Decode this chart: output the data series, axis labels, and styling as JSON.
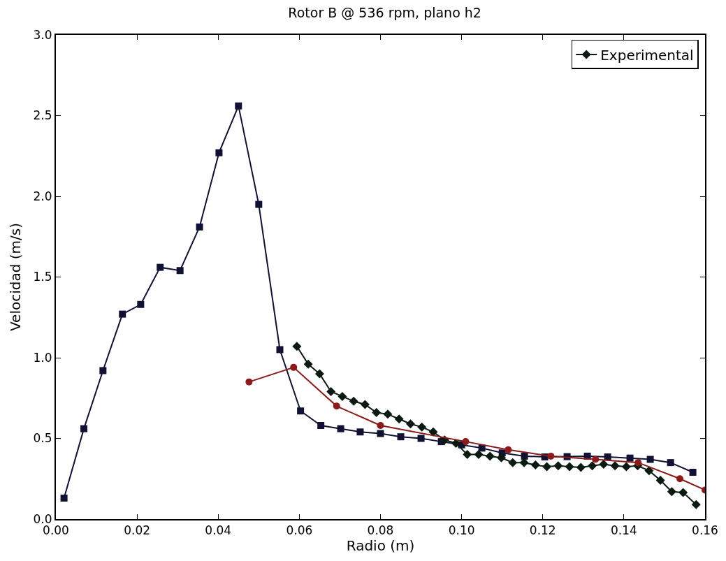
{
  "chart_data": {
    "type": "line",
    "title": "Rotor B @ 536 rpm, plano h2",
    "xlabel": "Radio (m)",
    "ylabel": "Velocidad (m/s)",
    "xlim": [
      0,
      0.16
    ],
    "ylim": [
      0,
      3.0
    ],
    "xticks": [
      {
        "value": 0,
        "label": "0.00"
      },
      {
        "value": 0.02,
        "label": "0.02"
      },
      {
        "value": 0.04,
        "label": "0.04"
      },
      {
        "value": 0.06,
        "label": "0.06"
      },
      {
        "value": 0.08,
        "label": "0.08"
      },
      {
        "value": 0.1,
        "label": "0.10"
      },
      {
        "value": 0.12,
        "label": "0.12"
      },
      {
        "value": 0.14,
        "label": "0.14"
      },
      {
        "value": 0.16,
        "label": "0.16"
      }
    ],
    "yticks": [
      {
        "value": 0,
        "label": "0.0"
      },
      {
        "value": 0.5,
        "label": "0.5"
      },
      {
        "value": 1,
        "label": "1.0"
      },
      {
        "value": 1.5,
        "label": "1.5"
      },
      {
        "value": 2,
        "label": "2.0"
      },
      {
        "value": 2.5,
        "label": "2.5"
      },
      {
        "value": 3,
        "label": "3.0"
      }
    ],
    "grid": false,
    "legend": "top right",
    "line_style": "solid",
    "series": [
      {
        "color": "#111133",
        "marker": "square",
        "x": [
          0.002,
          0.0069,
          0.0116,
          0.0164,
          0.0209,
          0.0257,
          0.0306,
          0.0354,
          0.0402,
          0.045,
          0.05,
          0.0552,
          0.0603,
          0.0653,
          0.0702,
          0.075,
          0.08,
          0.085,
          0.09,
          0.095,
          0.1,
          0.105,
          0.11,
          0.1155,
          0.1205,
          0.126,
          0.131,
          0.136,
          0.1415,
          0.1465,
          0.1515,
          0.157
        ],
        "values": [
          0.13,
          0.56,
          0.92,
          1.27,
          1.33,
          1.56,
          1.54,
          1.81,
          2.27,
          2.56,
          1.95,
          1.05,
          0.67,
          0.58,
          0.56,
          0.54,
          0.53,
          0.51,
          0.5,
          0.48,
          0.46,
          0.44,
          0.41,
          0.39,
          0.385,
          0.387,
          0.39,
          0.385,
          0.378,
          0.37,
          0.35,
          0.29
        ]
      },
      {
        "name": "Experimental",
        "color": "#0a1a10",
        "marker": "diamond",
        "x": [
          0.0594,
          0.0622,
          0.065,
          0.0678,
          0.0706,
          0.0734,
          0.0762,
          0.079,
          0.0818,
          0.0846,
          0.0874,
          0.0902,
          0.093,
          0.0958,
          0.0986,
          0.1014,
          0.1042,
          0.107,
          0.1098,
          0.1126,
          0.1154,
          0.1182,
          0.121,
          0.1238,
          0.1266,
          0.1294,
          0.1322,
          0.135,
          0.1378,
          0.1406,
          0.1434,
          0.1462,
          0.149,
          0.1518,
          0.1546,
          0.1578
        ],
        "values": [
          1.07,
          0.96,
          0.9,
          0.79,
          0.76,
          0.73,
          0.71,
          0.66,
          0.65,
          0.62,
          0.59,
          0.57,
          0.54,
          0.49,
          0.47,
          0.4,
          0.4,
          0.39,
          0.38,
          0.35,
          0.35,
          0.335,
          0.325,
          0.33,
          0.325,
          0.32,
          0.33,
          0.34,
          0.33,
          0.325,
          0.33,
          0.3,
          0.24,
          0.17,
          0.165,
          0.09
        ]
      },
      {
        "color": "#8b1a1a",
        "marker": "circle",
        "x": [
          0.0476,
          0.0586,
          0.0692,
          0.08,
          0.101,
          0.1115,
          0.122,
          0.133,
          0.1435,
          0.1538,
          0.16
        ],
        "values": [
          0.85,
          0.94,
          0.7,
          0.58,
          0.48,
          0.43,
          0.39,
          0.37,
          0.35,
          0.25,
          0.18
        ]
      }
    ]
  }
}
